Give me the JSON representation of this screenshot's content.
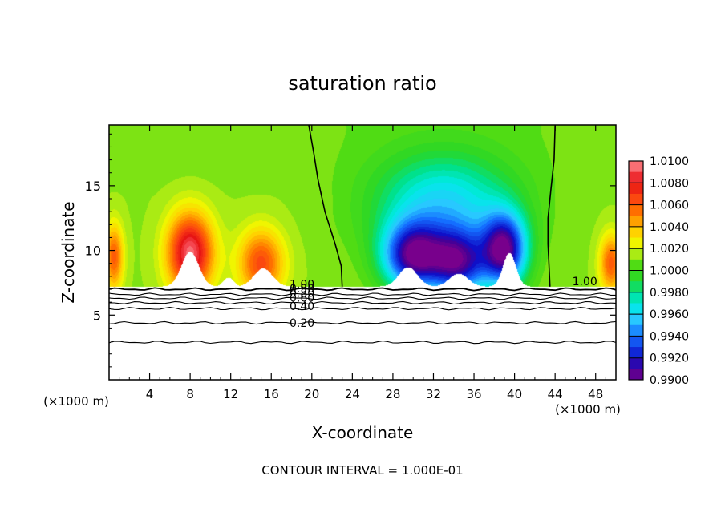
{
  "chart_data": {
    "type": "heatmap",
    "title": "saturation ratio",
    "xlabel": "X-coordinate",
    "ylabel": "Z-coordinate",
    "x_unit_left": "(×1000 m)",
    "x_unit_right": "(×1000 m)",
    "xlim": [
      0,
      50
    ],
    "ylim": [
      0,
      19.7
    ],
    "x_ticks": [
      4,
      8,
      12,
      16,
      20,
      24,
      28,
      32,
      36,
      40,
      44,
      48
    ],
    "y_ticks": [
      5,
      10,
      15
    ],
    "x_tick_labels": [
      "4",
      "8",
      "12",
      "16",
      "20",
      "24",
      "28",
      "32",
      "36",
      "40",
      "44",
      "48"
    ],
    "y_tick_labels": [
      "5",
      "10",
      "15"
    ],
    "footer": "CONTOUR INTERVAL = 1.000E-01",
    "colorbar": {
      "min": 0.99,
      "max": 1.01,
      "label_values": [
        1.01,
        1.008,
        1.006,
        1.004,
        1.002,
        1.0,
        0.998,
        0.996,
        0.994,
        0.992,
        0.99
      ],
      "labels": [
        "1.0100",
        "1.0080",
        "1.0060",
        "1.0040",
        "1.0020",
        "1.0000",
        "0.9980",
        "0.9960",
        "0.9940",
        "0.9920",
        "0.9900"
      ]
    },
    "subsurface_level": 7.2,
    "unity_contour_1": [
      [
        19.7,
        19.7
      ],
      [
        20.2,
        17.5
      ],
      [
        20.6,
        15.5
      ],
      [
        21.3,
        13.0
      ],
      [
        22.3,
        10.5
      ],
      [
        22.9,
        8.8
      ],
      [
        23.0,
        7.2
      ]
    ],
    "unity_contour_2": [
      [
        44.0,
        19.7
      ],
      [
        43.9,
        17.0
      ],
      [
        43.6,
        14.8
      ],
      [
        43.3,
        12.5
      ],
      [
        43.3,
        10.5
      ],
      [
        43.4,
        8.8
      ],
      [
        43.5,
        7.2
      ]
    ],
    "contour_lines_below": [
      {
        "value": 1.0,
        "z": 7.0
      },
      {
        "value": 0.9,
        "z": 6.6
      },
      {
        "value": 0.8,
        "z": 6.3
      },
      {
        "value": 0.6,
        "z": 5.95
      },
      {
        "value": 0.4,
        "z": 5.5
      },
      {
        "value": 0.2,
        "z": 4.4
      },
      {
        "value": 0.0,
        "z": 2.9
      }
    ],
    "contour_labels": [
      {
        "text": "1.00",
        "x": 17.8,
        "z": 7.1
      },
      {
        "text": "0.90",
        "x": 17.8,
        "z": 6.75
      },
      {
        "text": "0.80",
        "x": 17.8,
        "z": 6.4
      },
      {
        "text": "0.60",
        "x": 17.8,
        "z": 6.05
      },
      {
        "text": "0.40",
        "x": 17.8,
        "z": 5.4
      },
      {
        "text": "0.20",
        "x": 17.8,
        "z": 4.1
      },
      {
        "text": "1.00",
        "x": 45.7,
        "z": 7.3
      }
    ],
    "regions": [
      {
        "name": "warm-peak-8",
        "x": 8,
        "z": 9.8,
        "value": 1.0095,
        "sx": 2.2,
        "sz": 3.0
      },
      {
        "name": "warm-peak-15",
        "x": 15,
        "z": 9.0,
        "value": 1.0065,
        "sx": 2.2,
        "sz": 2.6
      },
      {
        "name": "warm-edge-left",
        "x": 0.5,
        "z": 9.5,
        "value": 1.006,
        "sx": 0.9,
        "sz": 2.5
      },
      {
        "name": "warm-edge-right",
        "x": 49.5,
        "z": 9.0,
        "value": 1.006,
        "sx": 1.1,
        "sz": 2.2
      },
      {
        "name": "dry-core-left",
        "x": 30,
        "z": 9.5,
        "value": 0.9915,
        "sx": 3.0,
        "sz": 2.6
      },
      {
        "name": "dry-core-mid",
        "x": 34.5,
        "z": 9.0,
        "value": 0.9925,
        "sx": 2.8,
        "sz": 2.6
      },
      {
        "name": "dry-core-right",
        "x": 39,
        "z": 10.0,
        "value": 0.991,
        "sx": 2.2,
        "sz": 2.8
      },
      {
        "name": "dry-upper",
        "x": 33,
        "z": 13.5,
        "value": 0.996,
        "sx": 7.0,
        "sz": 4.0
      }
    ],
    "blank_mounds": [
      {
        "x": 8,
        "z": 9.9,
        "sx": 1.2
      },
      {
        "x": 11.8,
        "z": 7.9,
        "sx": 0.7
      },
      {
        "x": 15.2,
        "z": 8.6,
        "sx": 1.3
      },
      {
        "x": 29.5,
        "z": 8.7,
        "sx": 1.3
      },
      {
        "x": 34.5,
        "z": 8.2,
        "sx": 1.3
      },
      {
        "x": 39.5,
        "z": 9.8,
        "sx": 0.9
      }
    ]
  }
}
